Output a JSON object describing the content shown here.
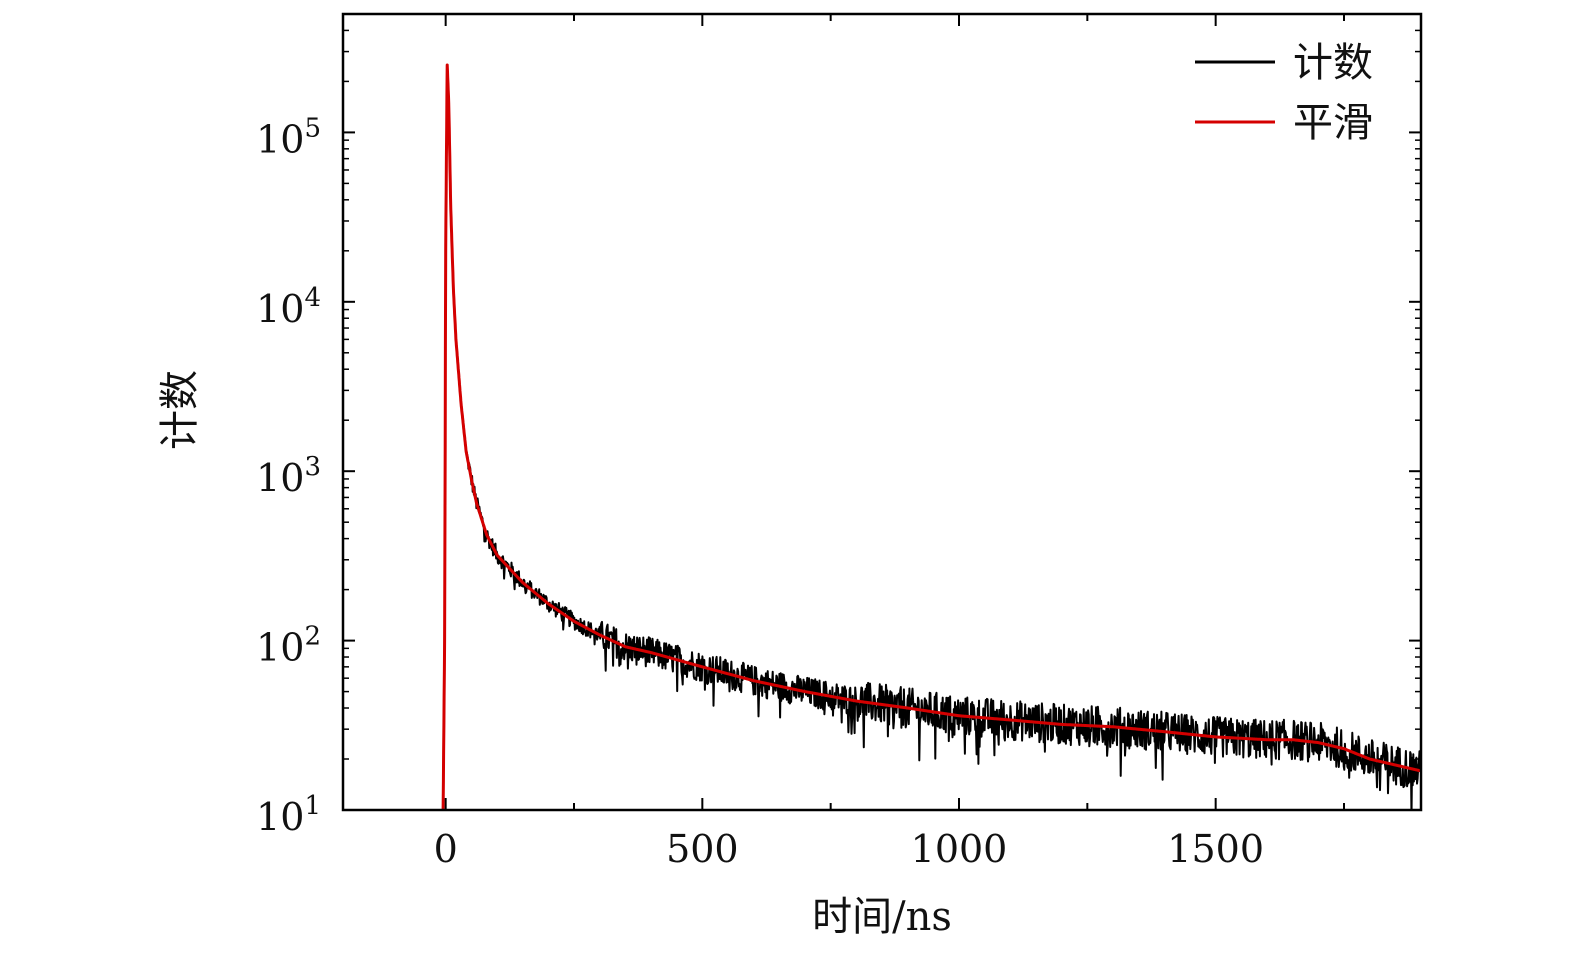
{
  "chart_data": {
    "type": "line",
    "title": "",
    "xlabel": "时间/ns",
    "ylabel": "计数",
    "xlim": [
      -200,
      1900
    ],
    "ylim": [
      10,
      500000
    ],
    "yscale": "log",
    "grid": false,
    "legend_position": "top-right",
    "x_ticks": [
      {
        "value": 0,
        "label": "0"
      },
      {
        "value": 500,
        "label": "500"
      },
      {
        "value": 1000,
        "label": "1000"
      },
      {
        "value": 1500,
        "label": "1500"
      }
    ],
    "y_ticks": [
      {
        "value": 10,
        "base": "10",
        "exp": "1"
      },
      {
        "value": 100,
        "base": "10",
        "exp": "2"
      },
      {
        "value": 1000,
        "base": "10",
        "exp": "3"
      },
      {
        "value": 10000,
        "base": "10",
        "exp": "4"
      },
      {
        "value": 100000,
        "base": "10",
        "exp": "5"
      }
    ],
    "series": [
      {
        "name": "计数",
        "color": "#000000",
        "style": "noisy",
        "x": [
          -5,
          -2,
          0,
          3,
          6,
          10,
          15,
          20,
          30,
          40,
          50,
          60,
          80,
          100,
          150,
          200,
          250,
          300,
          350,
          400,
          500,
          600,
          700,
          800,
          900,
          1000,
          1100,
          1200,
          1300,
          1400,
          1500,
          1600,
          1650,
          1700,
          1750,
          1800,
          1900
        ],
        "y": [
          10,
          100,
          20000,
          250000,
          150000,
          35000,
          12000,
          6000,
          2500,
          1300,
          900,
          650,
          420,
          320,
          220,
          165,
          130,
          108,
          92,
          85,
          70,
          58,
          50,
          44,
          40,
          36,
          34,
          32,
          31,
          29,
          27,
          26,
          26,
          25,
          23,
          20,
          17
        ]
      },
      {
        "name": "平滑",
        "color": "#d40000",
        "style": "smooth",
        "x": [
          -5,
          -2,
          0,
          3,
          6,
          10,
          15,
          20,
          30,
          40,
          50,
          60,
          80,
          100,
          150,
          200,
          250,
          300,
          350,
          400,
          500,
          600,
          700,
          800,
          900,
          1000,
          1100,
          1200,
          1300,
          1400,
          1500,
          1600,
          1650,
          1700,
          1750,
          1800,
          1900
        ],
        "y": [
          10,
          100,
          20000,
          250000,
          150000,
          35000,
          12000,
          6000,
          2500,
          1300,
          900,
          650,
          420,
          320,
          220,
          165,
          130,
          108,
          92,
          85,
          70,
          58,
          50,
          44,
          40,
          36,
          34,
          32,
          31,
          29,
          27,
          26,
          26,
          25,
          23,
          20,
          17
        ]
      }
    ]
  }
}
